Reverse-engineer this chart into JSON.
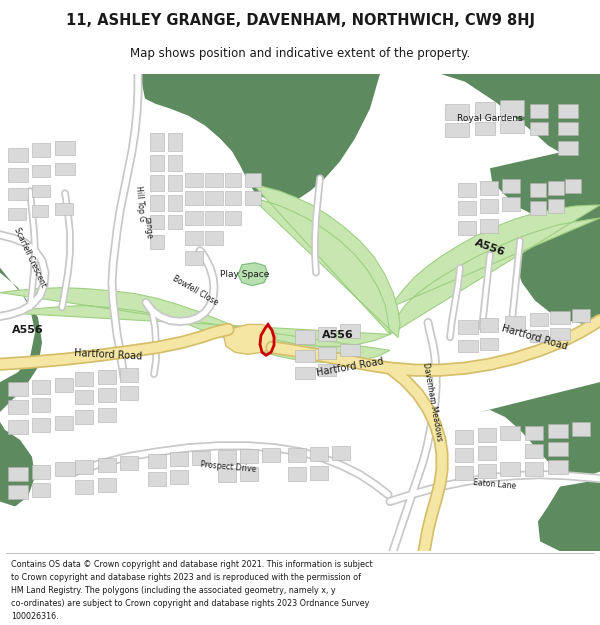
{
  "title": "11, ASHLEY GRANGE, DAVENHAM, NORTHWICH, CW9 8HJ",
  "subtitle": "Map shows position and indicative extent of the property.",
  "footer_lines": [
    "Contains OS data © Crown copyright and database right 2021. This information is subject",
    "to Crown copyright and database rights 2023 and is reproduced with the permission of",
    "HM Land Registry. The polygons (including the associated geometry, namely x, y",
    "co-ordinates) are subject to Crown copyright and database rights 2023 Ordnance Survey",
    "100026316."
  ],
  "bg_color": "#ffffff",
  "map_bg": "#f2f2f2",
  "green_dark": "#5d8a5e",
  "green_light": "#d6ecc4",
  "green_strip": "#c8e6b0",
  "green_strip_border": "#9ecf82",
  "road_yellow": "#f5e6a3",
  "road_border": "#d4be6a",
  "road_white": "#ffffff",
  "road_outline": "#c8c8c8",
  "building_fill": "#d9d9d9",
  "building_outline": "#b0b0b0",
  "plot_color": "#cc0000",
  "text_color": "#1a1a1a",
  "play_fill": "#b8dfb0",
  "play_outline": "#7ab87a"
}
